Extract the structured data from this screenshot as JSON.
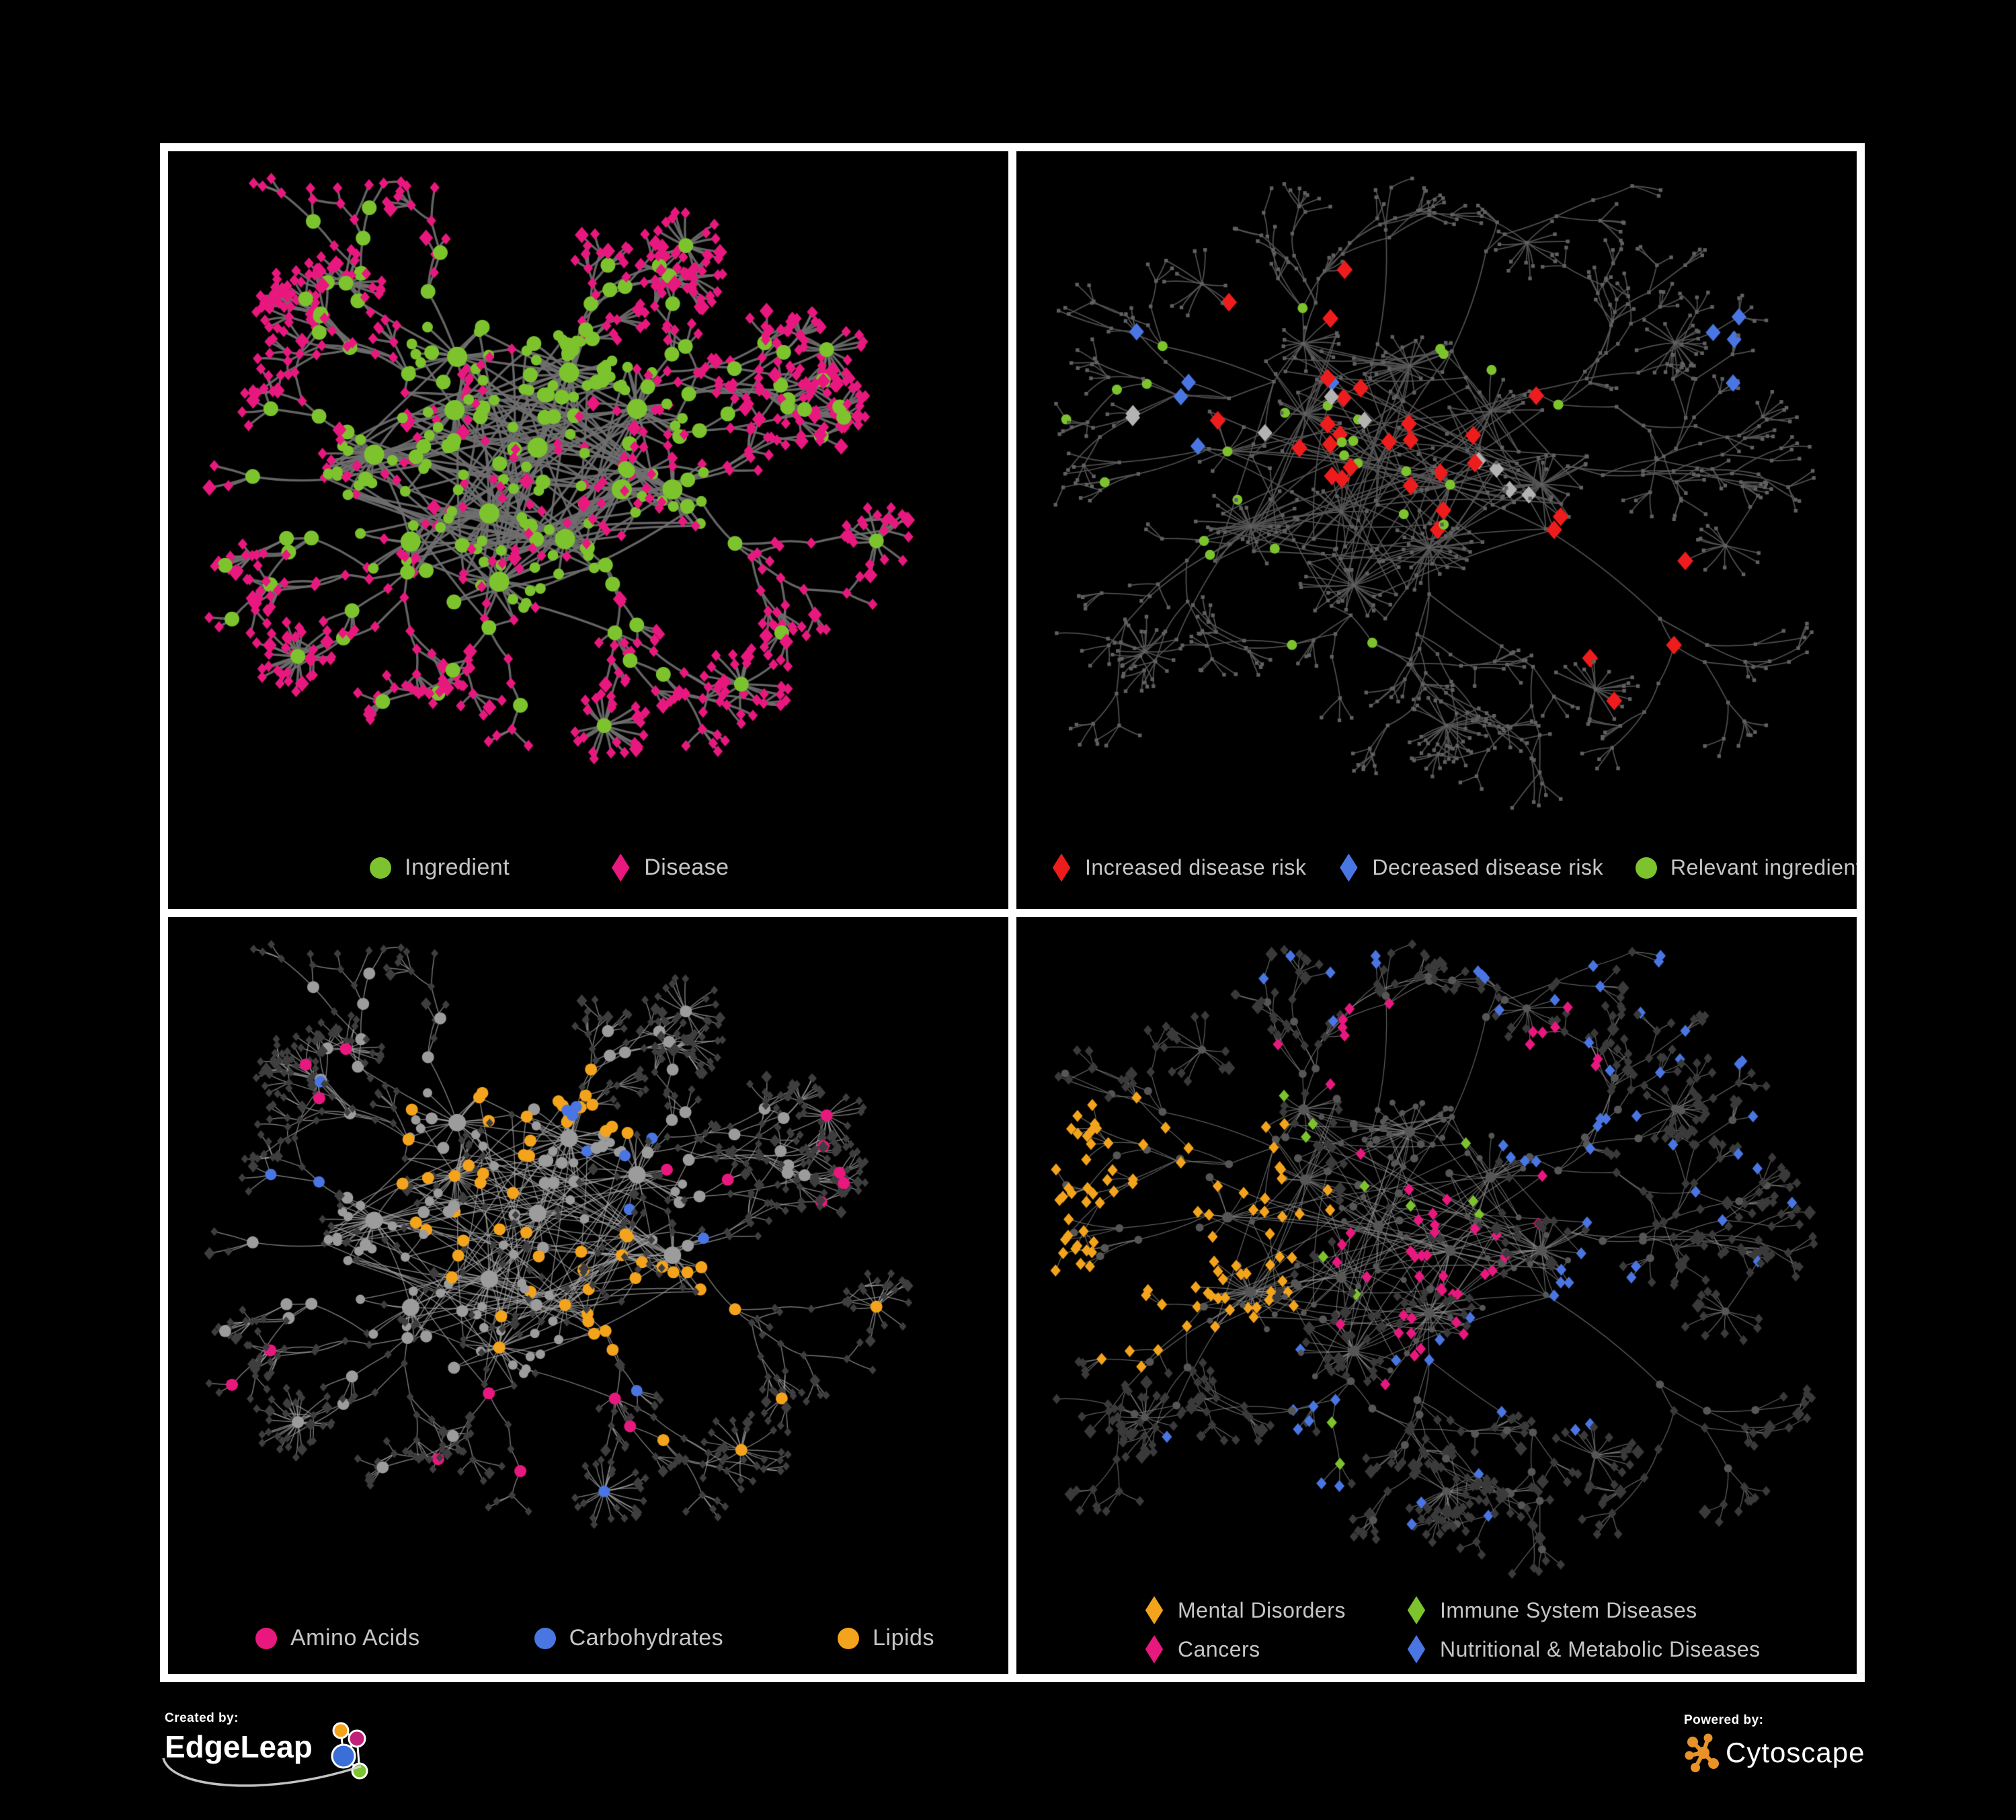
{
  "branding": {
    "created_by_label": "Created by:",
    "created_by_name": "EdgeLeap",
    "powered_by_label": "Powered by:",
    "powered_by_name": "Cytoscape"
  },
  "colors": {
    "background": "#000000",
    "panel_border": "#ffffff",
    "legend_text": "#c6c6c6",
    "ingredient_green": "#7cc32e",
    "disease_pink": "#e8187f",
    "risk_red": "#ee1c1c",
    "risk_blue": "#4a76e3",
    "neutral_silver": "#b3b3b3",
    "lipid_amber": "#f4a41c",
    "cytoscape_orange": "#e8922a"
  },
  "panels": [
    {
      "id": "ingredient-disease",
      "legend": [
        {
          "shape": "circle",
          "color": "#7cc32e",
          "label": "Ingredient"
        },
        {
          "shape": "diamond",
          "color": "#e8187f",
          "label": "Disease"
        }
      ],
      "net": {
        "layout": "left",
        "edge": {
          "color": "#6f6f6f",
          "width": 3.4,
          "alpha": 0.9
        },
        "ing": {
          "color": "#7cc32e",
          "rHub": 15,
          "rMid": 11,
          "rLeaf": 8
        },
        "dis": {
          "color": "#e8187f",
          "size": 8.5
        },
        "highlights": []
      }
    },
    {
      "id": "disease-risk",
      "legend": [
        {
          "shape": "diamond",
          "color": "#ee1c1c",
          "label": "Increased disease risk"
        },
        {
          "shape": "diamond",
          "color": "#4a76e3",
          "label": "Decreased disease risk"
        },
        {
          "shape": "circle",
          "color": "#7cc32e",
          "label": "Relevant ingredient"
        }
      ],
      "net": {
        "layout": "right",
        "edge": {
          "color": "#565656",
          "width": 1.8,
          "alpha": 0.9
        },
        "tiny": true,
        "tinyColor": "#606060",
        "tinySize": 2.7,
        "ing": {
          "color": "#606060",
          "rHub": 4,
          "rMid": 3,
          "rLeaf": 3
        },
        "dis": {
          "color": "#606060",
          "size": 3
        },
        "highlights": [
          {
            "shape": "diamond",
            "base": "dis",
            "color": "#ee1c1c",
            "size": 14,
            "count": 30,
            "spread": 0.05,
            "seed": 11,
            "foci": [
              [
                0.3,
                0.26
              ],
              [
                0.43,
                0.3
              ],
              [
                0.4,
                0.4
              ],
              [
                0.5,
                0.4
              ],
              [
                0.56,
                0.52
              ],
              [
                0.36,
                0.52
              ],
              [
                0.64,
                0.64
              ],
              [
                0.76,
                0.72
              ],
              [
                0.3,
                0.4
              ],
              [
                0.46,
                0.52
              ],
              [
                0.62,
                0.3
              ]
            ]
          },
          {
            "shape": "diamond",
            "base": "dis",
            "color": "#4a76e3",
            "size": 13,
            "count": 9,
            "spread": 0.03,
            "seed": 12,
            "foci": [
              [
                0.12,
                0.3
              ],
              [
                0.16,
                0.34
              ],
              [
                0.88,
                0.26
              ],
              [
                0.9,
                0.27
              ],
              [
                0.4,
                0.32
              ]
            ]
          },
          {
            "shape": "diamond",
            "base": "dis",
            "color": "#b3b3b3",
            "size": 13,
            "count": 9,
            "spread": 0.04,
            "seed": 13,
            "foci": [
              [
                0.18,
                0.34
              ],
              [
                0.3,
                0.44
              ],
              [
                0.52,
                0.47
              ],
              [
                0.57,
                0.52
              ],
              [
                0.44,
                0.4
              ]
            ]
          },
          {
            "shape": "circle",
            "base": "ing",
            "color": "#7cc32e",
            "size": 7.5,
            "count": 28,
            "spread": 0.06,
            "seed": 14,
            "foci": [
              [
                0.24,
                0.3
              ],
              [
                0.38,
                0.34
              ],
              [
                0.46,
                0.44
              ],
              [
                0.3,
                0.5
              ],
              [
                0.58,
                0.5
              ],
              [
                0.16,
                0.54
              ],
              [
                0.52,
                0.3
              ],
              [
                0.34,
                0.42
              ],
              [
                0.08,
                0.27
              ],
              [
                0.28,
                0.8
              ]
            ]
          }
        ]
      }
    },
    {
      "id": "ingredient-classes",
      "legend": [
        {
          "shape": "circle",
          "color": "#e8187f",
          "label": "Amino Acids"
        },
        {
          "shape": "circle",
          "color": "#4a76e3",
          "label": "Carbohydrates"
        },
        {
          "shape": "circle",
          "color": "#f4a41c",
          "label": "Lipids"
        }
      ],
      "net": {
        "layout": "left",
        "edge": {
          "color": "#a6a6a6",
          "width": 1.5,
          "alpha": 0.7
        },
        "ing": {
          "color": "#9c9c9c",
          "rHub": 13,
          "rMid": 9,
          "rLeaf": 7
        },
        "dis": {
          "color": "#3e3e3e",
          "size": 6.5
        },
        "highlights": [
          {
            "shape": "circle",
            "base": "ing",
            "color": "#f4a41c",
            "size": 9,
            "count": 62,
            "spread": 0.05,
            "seed": 21,
            "foci": [
              [
                0.42,
                0.26
              ],
              [
                0.47,
                0.3
              ],
              [
                0.36,
                0.45
              ],
              [
                0.44,
                0.5
              ],
              [
                0.52,
                0.52
              ],
              [
                0.7,
                0.63
              ],
              [
                0.3,
                0.33
              ],
              [
                0.55,
                0.57
              ]
            ]
          },
          {
            "shape": "circle",
            "base": "ing",
            "color": "#e8187f",
            "size": 9,
            "count": 17,
            "spread": 0.07,
            "seed": 22,
            "foci": [
              [
                0.12,
                0.6
              ],
              [
                0.5,
                0.78
              ],
              [
                0.3,
                0.86
              ],
              [
                0.95,
                0.3
              ],
              [
                0.72,
                0.4
              ],
              [
                0.16,
                0.24
              ],
              [
                0.6,
                0.7
              ],
              [
                0.97,
                0.13
              ],
              [
                0.02,
                0.32
              ]
            ]
          },
          {
            "shape": "circle",
            "base": "ing",
            "color": "#4a76e3",
            "size": 8.5,
            "count": 14,
            "spread": 0.04,
            "seed": 23,
            "foci": [
              [
                0.46,
                0.26
              ],
              [
                0.52,
                0.38
              ],
              [
                0.1,
                0.28
              ],
              [
                0.78,
                0.77
              ],
              [
                0.48,
                0.4
              ]
            ]
          }
        ]
      }
    },
    {
      "id": "disease-classes",
      "legend": [
        {
          "shape": "diamond",
          "color": "#f4a41c",
          "label": "Mental Disorders"
        },
        {
          "shape": "diamond",
          "color": "#7cc32e",
          "label": "Immune System Diseases"
        },
        {
          "shape": "diamond",
          "color": "#e8187f",
          "label": "Cancers"
        },
        {
          "shape": "diamond",
          "color": "#4a76e3",
          "label": "Nutritional & Metabolic Diseases"
        }
      ],
      "net": {
        "layout": "right",
        "edge": {
          "color": "#8e8e8e",
          "width": 1.3,
          "alpha": 0.65
        },
        "ing": {
          "color": "#565656",
          "rHub": 8,
          "rMid": 6,
          "rLeaf": 4.5
        },
        "dis": {
          "color": "#3a3a3a",
          "size": 7.5
        },
        "highlights": [
          {
            "shape": "diamond",
            "base": "dis",
            "color": "#f4a41c",
            "size": 9,
            "count": 95,
            "spread": 0.055,
            "seed": 31,
            "foci": [
              [
                0.15,
                0.37
              ],
              [
                0.21,
                0.43
              ],
              [
                0.12,
                0.49
              ],
              [
                0.26,
                0.49
              ],
              [
                0.18,
                0.55
              ],
              [
                0.08,
                0.43
              ]
            ]
          },
          {
            "shape": "diamond",
            "base": "dis",
            "color": "#e8187f",
            "size": 9,
            "count": 52,
            "spread": 0.05,
            "seed": 32,
            "foci": [
              [
                0.46,
                0.44
              ],
              [
                0.52,
                0.52
              ],
              [
                0.44,
                0.57
              ],
              [
                0.57,
                0.47
              ],
              [
                0.4,
                0.18
              ],
              [
                0.66,
                0.17
              ],
              [
                0.5,
                0.62
              ]
            ]
          },
          {
            "shape": "diamond",
            "base": "dis",
            "color": "#4a76e3",
            "size": 9,
            "count": 68,
            "spread": 0.06,
            "seed": 33,
            "foci": [
              [
                0.7,
                0.54
              ],
              [
                0.76,
                0.3
              ],
              [
                0.6,
                0.28
              ],
              [
                0.84,
                0.4
              ],
              [
                0.3,
                0.74
              ],
              [
                0.54,
                0.74
              ],
              [
                0.36,
                0.07
              ],
              [
                0.62,
                0.05
              ],
              [
                0.88,
                0.16
              ],
              [
                0.73,
                0.12
              ],
              [
                0.68,
                0.62
              ],
              [
                0.44,
                0.86
              ]
            ]
          },
          {
            "shape": "diamond",
            "base": "dis",
            "color": "#7cc32e",
            "size": 9,
            "count": 12,
            "spread": 0.05,
            "seed": 34,
            "foci": [
              [
                0.44,
                0.38
              ],
              [
                0.34,
                0.3
              ],
              [
                0.58,
                0.38
              ],
              [
                0.3,
                0.88
              ],
              [
                0.4,
                0.48
              ]
            ]
          }
        ]
      }
    }
  ]
}
